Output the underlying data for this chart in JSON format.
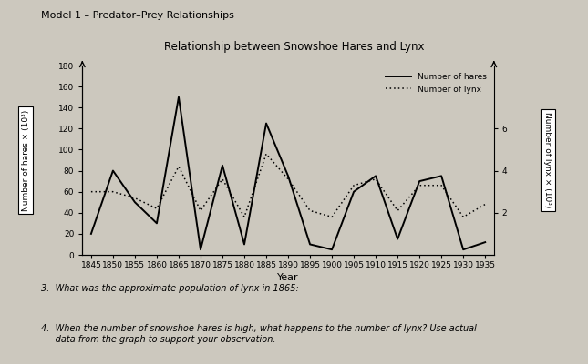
{
  "title_model": "Model 1 – Predator–Prey Relationships",
  "title_chart": "Relationship between Snowshoe Hares and Lynx",
  "xlabel": "Year",
  "ylabel_left": "Number of hares × (10³)",
  "ylabel_right": "Number of lynx × (10³)",
  "years": [
    1845,
    1850,
    1855,
    1860,
    1865,
    1870,
    1875,
    1880,
    1885,
    1890,
    1895,
    1900,
    1905,
    1910,
    1915,
    1920,
    1925,
    1930,
    1935
  ],
  "hares": [
    20,
    80,
    50,
    30,
    150,
    5,
    85,
    10,
    125,
    75,
    10,
    5,
    60,
    75,
    15,
    70,
    75,
    5,
    12
  ],
  "lynx_right": [
    3.0,
    3.0,
    2.7,
    2.2,
    4.2,
    2.1,
    3.6,
    1.8,
    4.8,
    3.6,
    2.1,
    1.8,
    3.3,
    3.6,
    2.1,
    3.3,
    3.3,
    1.8,
    2.4
  ],
  "ylim_left": [
    0,
    180
  ],
  "ylim_right": [
    0,
    9
  ],
  "yticks_left": [
    0,
    20,
    40,
    60,
    80,
    100,
    120,
    140,
    160,
    180
  ],
  "yticks_right": [
    2,
    4,
    6
  ],
  "background_color": "#ccc8be",
  "hares_color": "#000000",
  "lynx_color": "#000000",
  "question3": "3.  What was the approximate population of lynx in 1865:",
  "question4": "4.  When the number of snowshoe hares is high, what happens to the number of lynx? Use actual\n     data from the graph to support your observation."
}
